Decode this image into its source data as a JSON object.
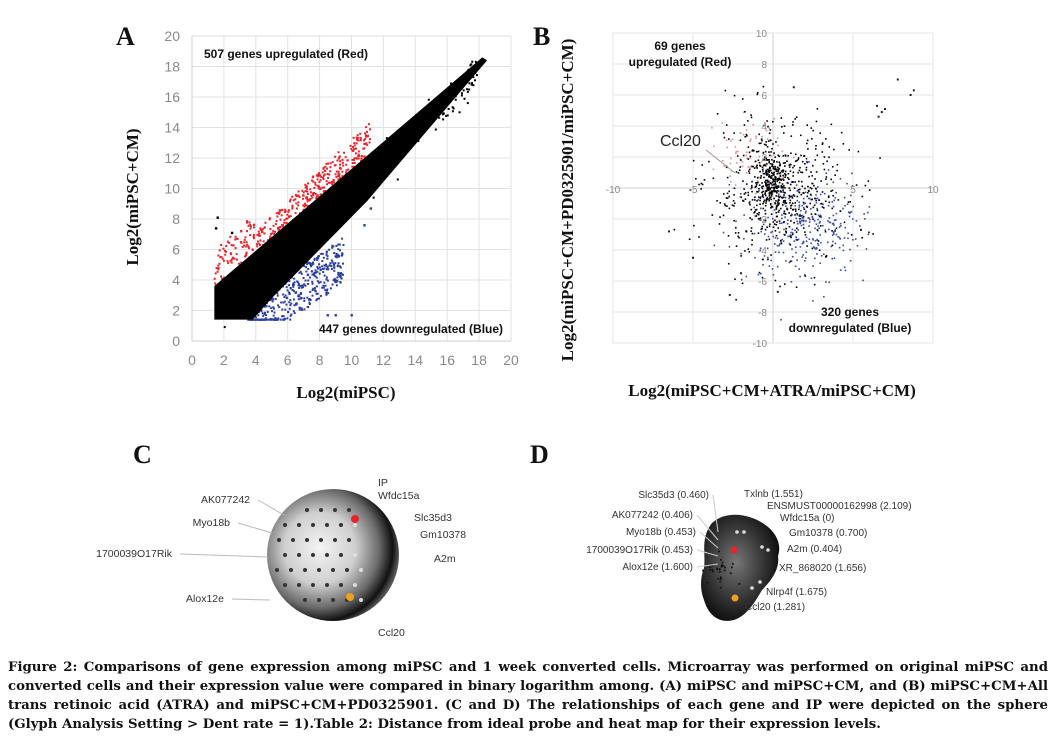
{
  "figure": {
    "panels": {
      "A": "A",
      "B": "B",
      "C": "C",
      "D": "D"
    },
    "caption": "Figure 2: Comparisons of gene expression among miPSC and 1 week converted cells. Microarray was performed on original miPSC and converted cells and their expression value were compared in binary logarithm among. (A) miPSC and miPSC+CM, and (B) miPSC+CM+All trans retinoic acid (ATRA) and miPSC+CM+PD0325901. (C and D) The relationships of each gene and IP were depicted on the sphere (Glyph Analysis Setting > Dent rate = 1).Table 2: Distance from ideal probe and heat map for their expression levels."
  },
  "chart_data": [
    {
      "id": "A",
      "type": "scatter",
      "title": "",
      "xlabel": "Log2(miPSC)",
      "ylabel": "Log2(miPSC+CM)",
      "xlim": [
        0,
        20
      ],
      "ylim": [
        0,
        20
      ],
      "xticks": [
        "0",
        "2",
        "4",
        "6",
        "8",
        "10",
        "12",
        "14",
        "16",
        "18",
        "20"
      ],
      "yticks": [
        "0",
        "2",
        "4",
        "6",
        "8",
        "10",
        "12",
        "14",
        "16",
        "18",
        "20"
      ],
      "grid": true,
      "annotations": [
        "507 genes upregulated (Red)",
        "447 genes downregulated (Blue)"
      ],
      "series": [
        {
          "name": "unchanged",
          "color": "#000000",
          "shape": "diagonal band y≈x",
          "x_range": [
            1.4,
            18.5
          ],
          "band_halfwidth_low": 1.8,
          "band_halfwidth_high": 0.3
        },
        {
          "name": "upregulated",
          "color": "#e8232a",
          "count": 507,
          "x_range": [
            1.4,
            11
          ],
          "offset_above_diagonal": [
            1.0,
            3.5
          ]
        },
        {
          "name": "downregulated",
          "color": "#2b3fa0",
          "count": 447,
          "x_range": [
            3.5,
            10.5
          ],
          "offset_below_diagonal": [
            1.0,
            4.0
          ]
        }
      ],
      "outliers": [
        [
          1.6,
          8.1
        ],
        [
          1.5,
          7.4
        ],
        [
          2.5,
          7.1
        ],
        [
          10.8,
          7.6
        ],
        [
          11.2,
          8.7
        ],
        [
          9.3,
          4.3
        ],
        [
          10.0,
          1.7
        ],
        [
          8.5,
          1.7
        ],
        [
          9.0,
          1.7
        ]
      ]
    },
    {
      "id": "B",
      "type": "scatter",
      "title": "",
      "xlabel": "Log2(miPSC+CM+ATRA/miPSC+CM)",
      "ylabel": "Log2(miPSC+CM+PD0325901/miPSC+CM)",
      "xlim": [
        -10,
        10
      ],
      "ylim": [
        -10,
        10
      ],
      "xticks": [
        "-10",
        "-5",
        "5",
        "10"
      ],
      "yticks": [
        "10",
        "8",
        "6",
        "4",
        "2",
        "-2",
        "-4",
        "-6",
        "-8",
        "-10"
      ],
      "grid": true,
      "annotations": [
        "69 genes upregulated (Red)",
        "320 genes downregulated (Blue)",
        "Ccl20"
      ],
      "callout": {
        "label": "Ccl20",
        "point": [
          -1.5,
          0.6
        ]
      },
      "series": [
        {
          "name": "unchanged",
          "color": "#000000",
          "center": [
            0,
            0
          ],
          "spread": [
            2.0,
            2.2
          ],
          "count": 700
        },
        {
          "name": "upregulated",
          "color": "#e89090",
          "count": 69,
          "center": [
            -1.5,
            1.8
          ]
        },
        {
          "name": "downregulated",
          "color": "#3a4aa8",
          "count": 320,
          "center": [
            2.0,
            -2.5
          ]
        }
      ],
      "outliers": [
        [
          7.8,
          7.0
        ],
        [
          8.8,
          6.3
        ],
        [
          8.6,
          6.0
        ],
        [
          6.5,
          5.3
        ],
        [
          6.8,
          4.9
        ],
        [
          7.0,
          5.1
        ],
        [
          6.6,
          4.6
        ],
        [
          1.3,
          6.5
        ],
        [
          -6.5,
          -2.8
        ],
        [
          -5.0,
          -4.5
        ],
        [
          -2.7,
          -6.9
        ],
        [
          5.5,
          -2.7
        ],
        [
          0.3,
          -6.7
        ],
        [
          -2.0,
          -5.5
        ]
      ]
    }
  ],
  "glyph_c": {
    "labels_left": [
      "AK077242",
      "Myo18b",
      "1700039O17Rik",
      "Alox12e"
    ],
    "labels_right": [
      "IP",
      "Wfdc15a",
      "Slc35d3",
      "Gm10378",
      "A2m",
      "Ccl20"
    ],
    "ip_color": "#e8232a",
    "ccl20_color": "#f0a020"
  },
  "glyph_d": {
    "labels_left": [
      "Slc35d3 (0.460)",
      "AK077242 (0.406)",
      "Myo18b (0.453)",
      "1700039O17Rik (0.453)",
      "Alox12e (1.600)"
    ],
    "labels_right": [
      "Txlnb (1.551)",
      "ENSMUST00000162998 (2.109)",
      "Wfdc15a (0)",
      "Gm10378 (0.700)",
      "A2m (0.404)",
      "XR_868020 (1.656)",
      "Nlrp4f (1.675)",
      "Ccl20 (1.281)"
    ],
    "ip_color": "#e8232a",
    "ccl20_color": "#f0a020"
  }
}
